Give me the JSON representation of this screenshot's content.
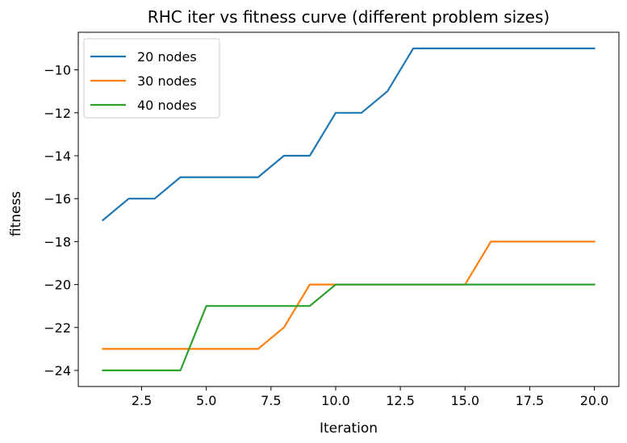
{
  "chart_data": {
    "type": "line",
    "title": "RHC iter vs fitness curve (different problem sizes)",
    "xlabel": "Iteration",
    "ylabel": "fitness",
    "xlim": [
      0.05,
      20.95
    ],
    "ylim": [
      -24.75,
      -8.25
    ],
    "xticks": [
      2.5,
      5.0,
      7.5,
      10.0,
      12.5,
      15.0,
      17.5,
      20.0
    ],
    "xtick_labels": [
      "2.5",
      "5.0",
      "7.5",
      "10.0",
      "12.5",
      "15.0",
      "17.5",
      "20.0"
    ],
    "yticks": [
      -10,
      -12,
      -14,
      -16,
      -18,
      -20,
      -22,
      -24
    ],
    "ytick_labels": [
      "−10",
      "−12",
      "−14",
      "−16",
      "−18",
      "−20",
      "−22",
      "−24"
    ],
    "grid": false,
    "legend_position": "top-left",
    "x": [
      1,
      2,
      3,
      4,
      5,
      6,
      7,
      8,
      9,
      10,
      11,
      12,
      13,
      14,
      15,
      16,
      17,
      18,
      19,
      20
    ],
    "series": [
      {
        "name": "20 nodes",
        "color": "#1f77b4",
        "values": [
          -17,
          -16,
          -16,
          -15,
          -15,
          -15,
          -15,
          -14,
          -14,
          -12,
          -12,
          -11,
          -9,
          -9,
          -9,
          -9,
          -9,
          -9,
          -9,
          -9
        ]
      },
      {
        "name": "30 nodes",
        "color": "#ff7f0e",
        "values": [
          -23,
          -23,
          -23,
          -23,
          -23,
          -23,
          -23,
          -22,
          -20,
          -20,
          -20,
          -20,
          -20,
          -20,
          -20,
          -18,
          -18,
          -18,
          -18,
          -18
        ]
      },
      {
        "name": "40 nodes",
        "color": "#2ca02c",
        "values": [
          -24,
          -24,
          -24,
          -24,
          -21,
          -21,
          -21,
          -21,
          -21,
          -20,
          -20,
          -20,
          -20,
          -20,
          -20,
          -20,
          -20,
          -20,
          -20,
          -20
        ]
      }
    ]
  }
}
